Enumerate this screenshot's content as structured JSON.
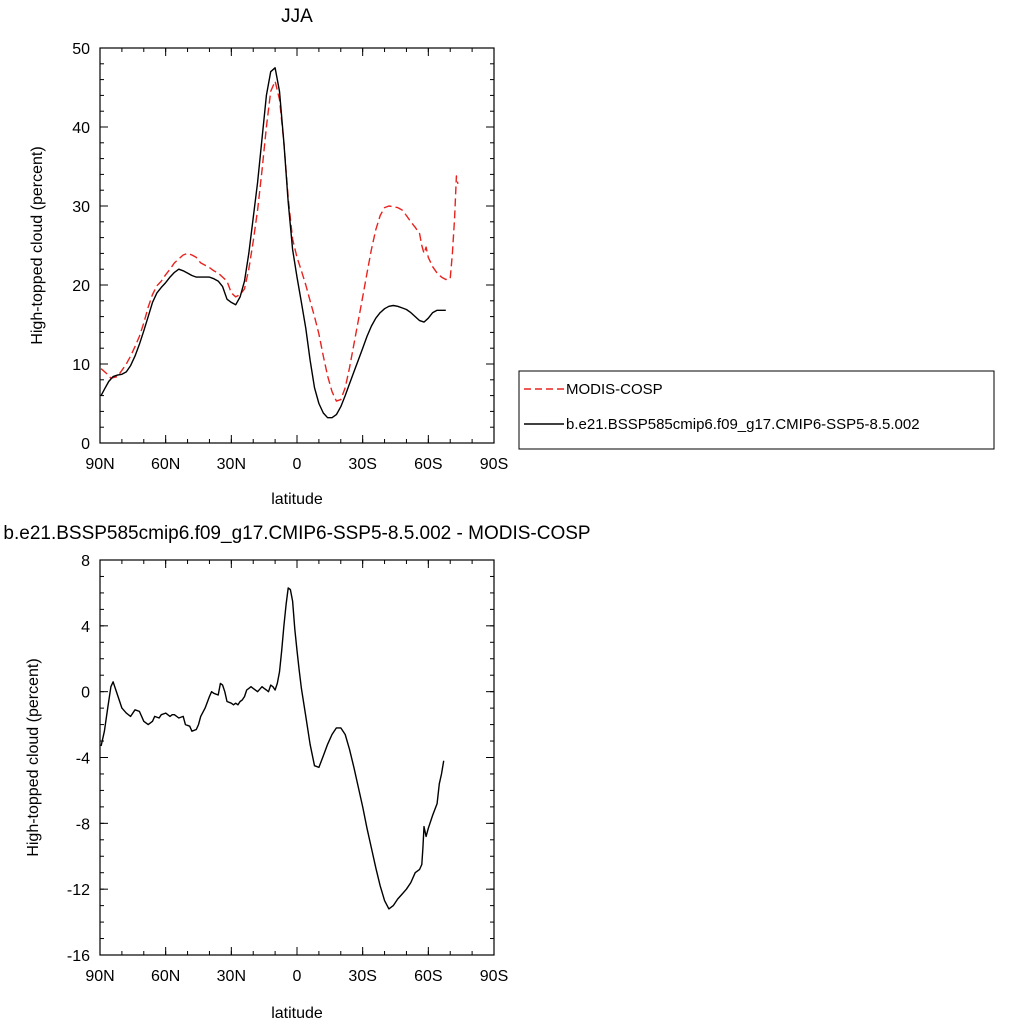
{
  "chart_data": [
    {
      "type": "line",
      "title": "JJA",
      "xlabel": "latitude",
      "ylabel": "High-topped cloud (percent)",
      "xlim": [
        90,
        -90
      ],
      "ylim": [
        0,
        50
      ],
      "x_ticks": [
        {
          "value": 90,
          "label": "90N"
        },
        {
          "value": 60,
          "label": "60N"
        },
        {
          "value": 30,
          "label": "30N"
        },
        {
          "value": 0,
          "label": "0"
        },
        {
          "value": -30,
          "label": "30S"
        },
        {
          "value": -60,
          "label": "60S"
        },
        {
          "value": -90,
          "label": "90S"
        }
      ],
      "y_ticks": [
        {
          "value": 0,
          "label": "0"
        },
        {
          "value": 10,
          "label": "10"
        },
        {
          "value": 20,
          "label": "20"
        },
        {
          "value": 30,
          "label": "30"
        },
        {
          "value": 40,
          "label": "40"
        },
        {
          "value": 50,
          "label": "50"
        }
      ],
      "legend_position": "right",
      "series": [
        {
          "name": "MODIS-COSP",
          "color": "#e8231f",
          "dash": "dashed",
          "x": [
            89.5,
            87,
            85,
            82,
            80,
            78,
            76,
            74,
            72,
            70,
            68,
            66,
            64,
            62,
            60,
            58,
            56,
            54,
            52,
            50,
            48,
            46,
            44,
            42,
            40,
            38,
            36,
            34,
            32,
            30,
            28,
            26,
            24,
            22,
            20,
            18,
            16,
            14,
            12,
            10,
            8,
            6,
            4,
            2,
            0,
            -2,
            -4,
            -6,
            -8,
            -10,
            -12,
            -14,
            -16,
            -18,
            -20,
            -22,
            -24,
            -26,
            -28,
            -30,
            -32,
            -34,
            -36,
            -38,
            -40,
            -42,
            -44,
            -46,
            -48,
            -50,
            -52,
            -54,
            -56,
            -57,
            -58,
            -59,
            -60,
            -62,
            -64,
            -66,
            -68,
            -70,
            -71,
            -72,
            -72.8,
            -73.5
          ],
          "values": [
            9.4,
            8.8,
            8.2,
            8.4,
            9.2,
            10.0,
            11.0,
            12.2,
            13.5,
            15.2,
            17.2,
            18.8,
            19.9,
            20.5,
            21.3,
            22.0,
            22.8,
            23.3,
            23.8,
            24.0,
            23.8,
            23.5,
            22.8,
            22.5,
            22.2,
            21.8,
            21.5,
            21.0,
            20.5,
            19.0,
            18.5,
            18.8,
            19.5,
            22.0,
            25.5,
            29.5,
            34.5,
            40.0,
            44.5,
            45.8,
            43.5,
            38.0,
            31.0,
            25.8,
            23.5,
            21.8,
            20.0,
            18.0,
            16.0,
            13.8,
            11.0,
            8.5,
            6.5,
            5.3,
            5.5,
            7.0,
            9.5,
            12.5,
            15.5,
            18.5,
            21.5,
            24.5,
            27.0,
            28.8,
            29.8,
            30.0,
            29.9,
            29.8,
            29.5,
            28.8,
            28.0,
            27.3,
            26.5,
            25.0,
            24.0,
            24.8,
            23.5,
            22.3,
            21.5,
            21.0,
            20.7,
            20.8,
            24.0,
            28.5,
            33.8,
            32.8
          ]
        },
        {
          "name": "b.e21.BSSP585cmip6.f09_g17.CMIP6-SSP5-8.5.002",
          "color": "#000000",
          "dash": "solid",
          "x": [
            89.5,
            88,
            86,
            84,
            82,
            80,
            78,
            76,
            74,
            72,
            70,
            68,
            66,
            64,
            62,
            60,
            58,
            56,
            54,
            52,
            50,
            48,
            46,
            44,
            42,
            40,
            38,
            36,
            34,
            32,
            30,
            28,
            26,
            24,
            22,
            20,
            18,
            16,
            14,
            12,
            10,
            8,
            6,
            4,
            2,
            0,
            -2,
            -4,
            -6,
            -8,
            -10,
            -12,
            -14,
            -16,
            -18,
            -20,
            -22,
            -24,
            -26,
            -28,
            -30,
            -32,
            -34,
            -36,
            -38,
            -40,
            -42,
            -44,
            -46,
            -48,
            -50,
            -52,
            -54,
            -56,
            -58,
            -60,
            -62,
            -64,
            -66,
            -68
          ],
          "values": [
            6.0,
            6.8,
            7.8,
            8.4,
            8.6,
            8.7,
            9.0,
            9.8,
            11.0,
            12.5,
            14.2,
            16.0,
            17.8,
            19.0,
            19.7,
            20.3,
            21.0,
            21.6,
            22.0,
            21.8,
            21.5,
            21.2,
            21.0,
            21.0,
            21.0,
            21.0,
            20.8,
            20.5,
            19.8,
            18.2,
            17.8,
            17.5,
            18.5,
            20.5,
            24.0,
            28.5,
            33.0,
            38.5,
            44.0,
            47.0,
            47.5,
            44.5,
            38.0,
            30.5,
            24.5,
            21.0,
            17.8,
            14.5,
            10.5,
            7.0,
            5.0,
            3.8,
            3.2,
            3.2,
            3.6,
            4.6,
            6.0,
            7.5,
            9.0,
            10.5,
            12.0,
            13.5,
            14.8,
            15.8,
            16.5,
            17.0,
            17.3,
            17.4,
            17.3,
            17.1,
            16.9,
            16.5,
            16.0,
            15.5,
            15.3,
            15.8,
            16.5,
            16.8,
            16.8,
            16.8
          ]
        }
      ]
    },
    {
      "type": "line",
      "title": "b.e21.BSSP585cmip6.f09_g17.CMIP6-SSP5-8.5.002 - MODIS-COSP",
      "xlabel": "latitude",
      "ylabel": "High-topped cloud (percent)",
      "xlim": [
        90,
        -90
      ],
      "ylim": [
        -16,
        8
      ],
      "x_ticks": [
        {
          "value": 90,
          "label": "90N"
        },
        {
          "value": 60,
          "label": "60N"
        },
        {
          "value": 30,
          "label": "30N"
        },
        {
          "value": 0,
          "label": "0"
        },
        {
          "value": -30,
          "label": "30S"
        },
        {
          "value": -60,
          "label": "60S"
        },
        {
          "value": -90,
          "label": "90S"
        }
      ],
      "y_ticks": [
        {
          "value": 8,
          "label": "8"
        },
        {
          "value": 4,
          "label": "4"
        },
        {
          "value": 0,
          "label": "0"
        },
        {
          "value": -4,
          "label": "-4"
        },
        {
          "value": -8,
          "label": "-8"
        },
        {
          "value": -12,
          "label": "-12"
        },
        {
          "value": -16,
          "label": "-16"
        }
      ],
      "series": [
        {
          "color": "#000000",
          "dash": "solid",
          "x": [
            89.5,
            88,
            86.5,
            85,
            84,
            83,
            81,
            80,
            78,
            76,
            75,
            74,
            72,
            70,
            68,
            66,
            65,
            63,
            62,
            60,
            58,
            57,
            56,
            54,
            52,
            51,
            49,
            48,
            46,
            45,
            44,
            42,
            40,
            39,
            38,
            36,
            35,
            34,
            33,
            32,
            30,
            29,
            28,
            27,
            26,
            25,
            24,
            23,
            22,
            21,
            20,
            18,
            16,
            15,
            14,
            13,
            12,
            11,
            10,
            9,
            8,
            7,
            6,
            5,
            4,
            3,
            2,
            1,
            0,
            -1,
            -2,
            -4,
            -6,
            -8,
            -10,
            -12,
            -14,
            -16,
            -18,
            -20,
            -22,
            -24,
            -26,
            -28,
            -30,
            -32,
            -34,
            -36,
            -38,
            -40,
            -42,
            -44,
            -46,
            -48,
            -50,
            -52,
            -54,
            -56,
            -57,
            -57.5,
            -58,
            -59,
            -60,
            -62,
            -64,
            -65,
            -66,
            -67
          ],
          "values": [
            -3.3,
            -2.4,
            -1.0,
            0.3,
            0.6,
            0.2,
            -0.6,
            -1.0,
            -1.3,
            -1.5,
            -1.3,
            -1.1,
            -1.2,
            -1.8,
            -2.0,
            -1.8,
            -1.5,
            -1.6,
            -1.4,
            -1.3,
            -1.5,
            -1.4,
            -1.4,
            -1.6,
            -1.5,
            -2.0,
            -2.1,
            -2.4,
            -2.3,
            -2.0,
            -1.5,
            -1.0,
            -0.3,
            0.0,
            -0.1,
            -0.2,
            0.5,
            0.4,
            0.0,
            -0.6,
            -0.7,
            -0.8,
            -0.7,
            -0.8,
            -0.6,
            -0.5,
            -0.3,
            0.1,
            0.2,
            0.3,
            0.2,
            0.0,
            0.3,
            0.2,
            0.1,
            0.0,
            0.4,
            0.3,
            0.1,
            0.5,
            1.2,
            2.5,
            4.0,
            5.3,
            6.3,
            6.2,
            5.5,
            3.8,
            2.5,
            1.3,
            0.2,
            -1.5,
            -3.2,
            -4.5,
            -4.6,
            -3.9,
            -3.2,
            -2.6,
            -2.2,
            -2.2,
            -2.6,
            -3.5,
            -4.6,
            -5.8,
            -7.0,
            -8.3,
            -9.5,
            -10.7,
            -11.8,
            -12.7,
            -13.2,
            -13.0,
            -12.6,
            -12.3,
            -12.0,
            -11.6,
            -11.0,
            -10.8,
            -10.5,
            -9.5,
            -8.2,
            -8.8,
            -8.3,
            -7.5,
            -6.8,
            -5.6,
            -5.0,
            -4.2
          ]
        }
      ]
    }
  ]
}
